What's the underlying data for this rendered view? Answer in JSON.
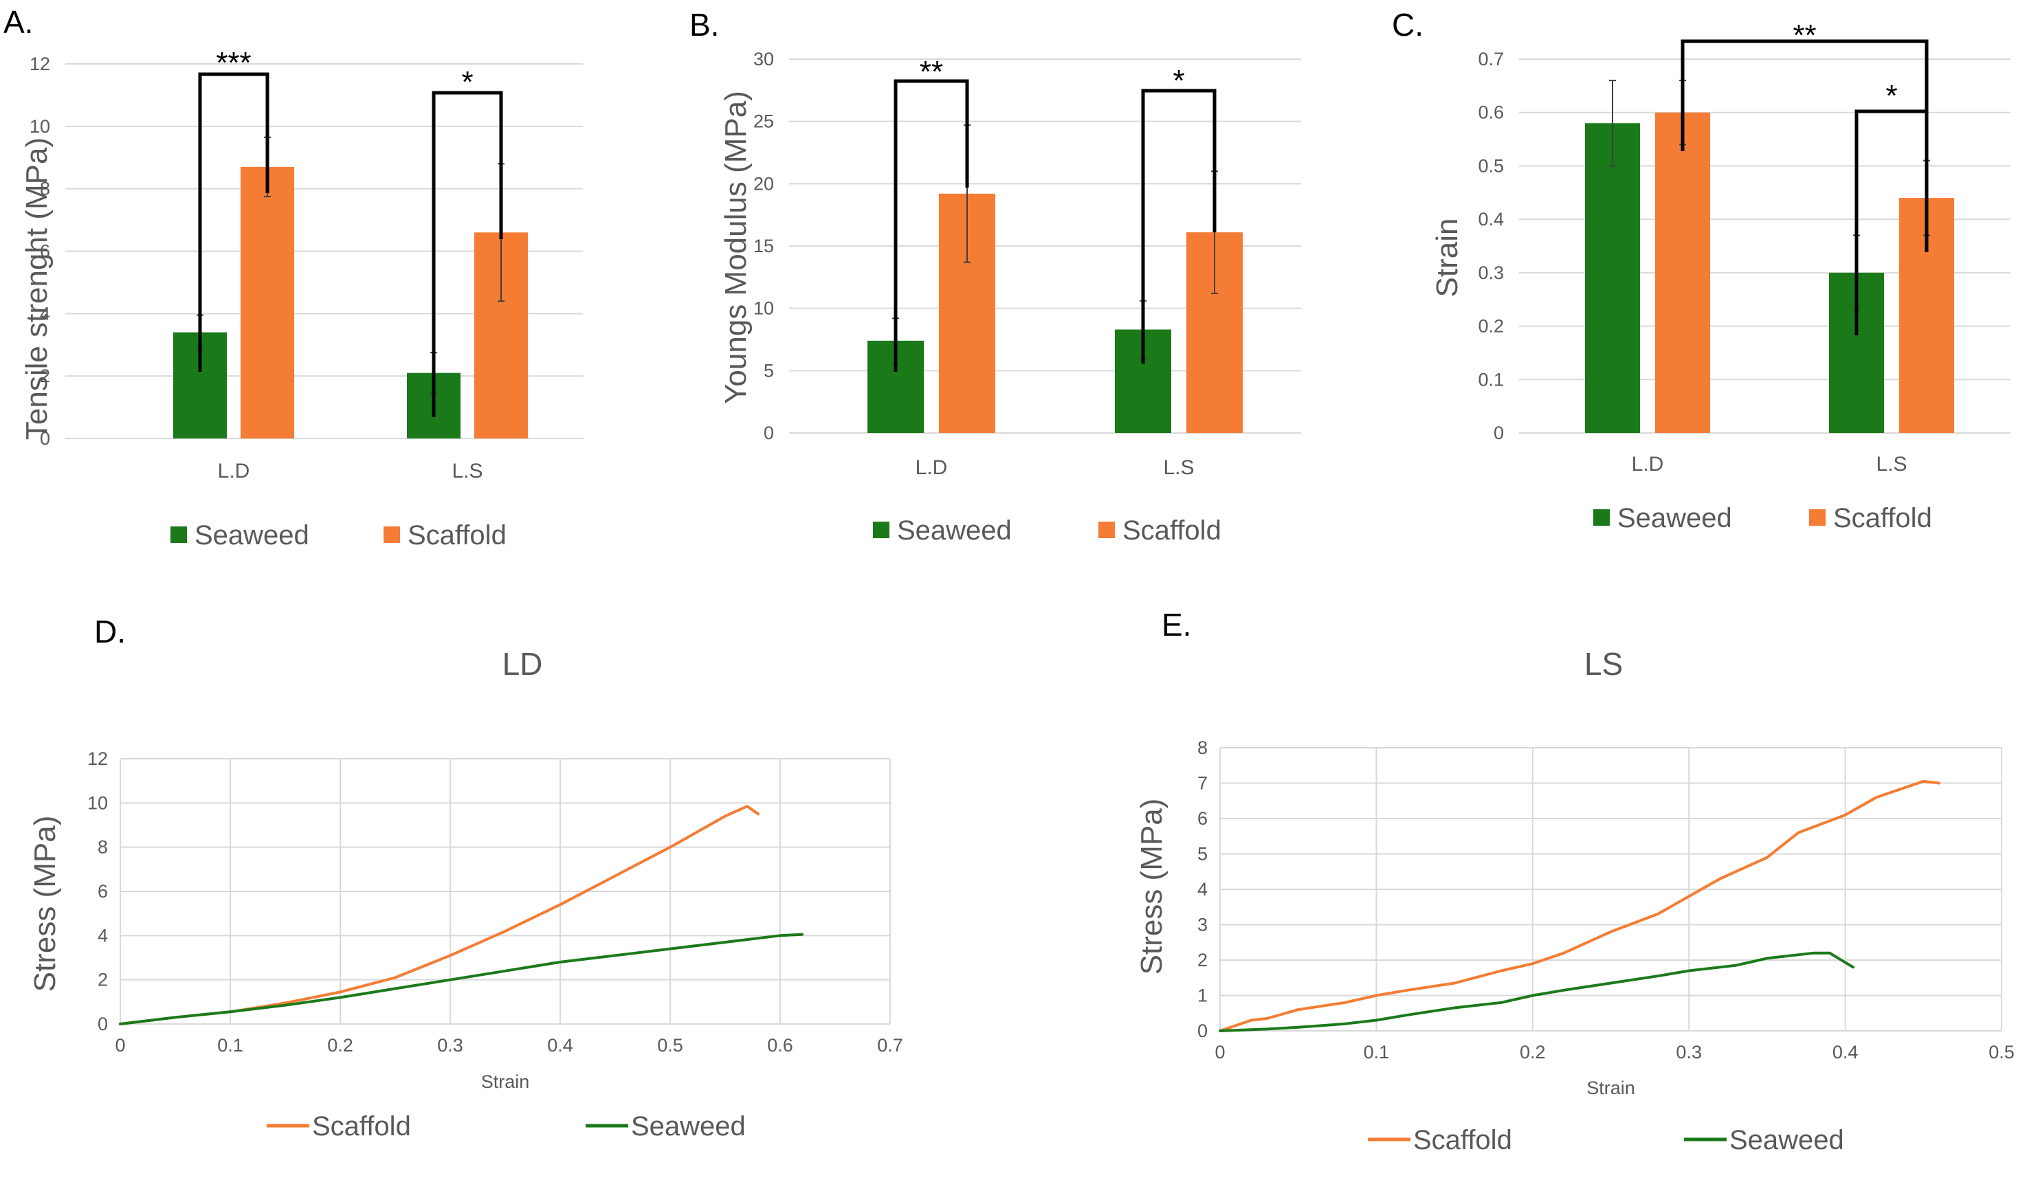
{
  "colors": {
    "seaweed": "#1a7a1a",
    "scaffold": "#f57c34",
    "grid": "#d9d9d9",
    "text": "#595959"
  },
  "chart_data": [
    {
      "panel": "A.",
      "type": "bar",
      "categories": [
        "L.D",
        "L.S"
      ],
      "series": [
        {
          "name": "Seaweed",
          "values": [
            3.4,
            2.1
          ],
          "errors": [
            0.55,
            0.65
          ]
        },
        {
          "name": "Scaffold",
          "values": [
            8.7,
            6.6
          ],
          "errors": [
            0.95,
            2.2
          ]
        }
      ],
      "ylabel": "Tensile strenght (MPa)",
      "ylim": [
        0,
        12
      ],
      "yticks": [
        "0",
        "2",
        "4",
        "6",
        "8",
        "10",
        "12"
      ],
      "significance": [
        "***",
        "*"
      ],
      "legend": [
        "Seaweed",
        "Scaffold"
      ]
    },
    {
      "panel": "B.",
      "type": "bar",
      "categories": [
        "L.D",
        "L.S"
      ],
      "series": [
        {
          "name": "Seaweed",
          "values": [
            7.4,
            8.3
          ],
          "errors": [
            1.8,
            2.3
          ]
        },
        {
          "name": "Scaffold",
          "values": [
            19.2,
            16.1
          ],
          "errors": [
            5.5,
            4.9
          ]
        }
      ],
      "ylabel": "Youngs Modulus (MPa)",
      "ylim": [
        0,
        30
      ],
      "yticks": [
        "0",
        "5",
        "10",
        "15",
        "20",
        "25",
        "30"
      ],
      "significance": [
        "**",
        "*"
      ],
      "legend": [
        "Seaweed",
        "Scaffold"
      ]
    },
    {
      "panel": "C.",
      "type": "bar",
      "categories": [
        "L.D",
        "L.S"
      ],
      "series": [
        {
          "name": "Seaweed",
          "values": [
            0.58,
            0.3
          ],
          "errors": [
            0.08,
            0.07
          ]
        },
        {
          "name": "Scaffold",
          "values": [
            0.6,
            0.44
          ],
          "errors": [
            0.06,
            0.07
          ]
        }
      ],
      "ylabel": "Strain",
      "ylim": [
        0,
        0.7
      ],
      "yticks": [
        "0",
        "0.1",
        "0.2",
        "0.3",
        "0.4",
        "0.5",
        "0.6",
        "0.7"
      ],
      "significance": [
        "**",
        "*"
      ],
      "legend": [
        "Seaweed",
        "Scaffold"
      ]
    },
    {
      "panel": "D.",
      "type": "line",
      "title": "LD",
      "xlabel": "Strain",
      "ylabel": "Stress (MPa)",
      "xlim": [
        0,
        0.7
      ],
      "ylim": [
        0,
        12
      ],
      "xticks": [
        "0",
        "0.1",
        "0.2",
        "0.3",
        "0.4",
        "0.5",
        "0.6",
        "0.7"
      ],
      "yticks": [
        "0",
        "2",
        "4",
        "6",
        "8",
        "10",
        "12"
      ],
      "series": [
        {
          "name": "Scaffold",
          "x": [
            0,
            0.05,
            0.1,
            0.15,
            0.2,
            0.25,
            0.3,
            0.35,
            0.4,
            0.45,
            0.5,
            0.55,
            0.57,
            0.58
          ],
          "y": [
            0,
            0.3,
            0.55,
            0.95,
            1.45,
            2.1,
            3.1,
            4.2,
            5.4,
            6.7,
            8.0,
            9.4,
            9.85,
            9.5
          ]
        },
        {
          "name": "Seaweed",
          "x": [
            0,
            0.05,
            0.1,
            0.15,
            0.2,
            0.25,
            0.3,
            0.35,
            0.4,
            0.45,
            0.5,
            0.55,
            0.6,
            0.62
          ],
          "y": [
            0,
            0.3,
            0.55,
            0.85,
            1.2,
            1.6,
            2.0,
            2.4,
            2.8,
            3.1,
            3.4,
            3.7,
            4.0,
            4.05
          ]
        }
      ],
      "legend": [
        "Scaffold",
        "Seaweed"
      ]
    },
    {
      "panel": "E.",
      "type": "line",
      "title": "LS",
      "xlabel": "Strain",
      "ylabel": "Stress (MPa)",
      "xlim": [
        0,
        0.5
      ],
      "ylim": [
        0,
        8
      ],
      "xticks": [
        "0",
        "0.1",
        "0.2",
        "0.3",
        "0.4",
        "0.5"
      ],
      "yticks": [
        "0",
        "1",
        "2",
        "3",
        "4",
        "5",
        "6",
        "7",
        "8"
      ],
      "series": [
        {
          "name": "Scaffold",
          "x": [
            0,
            0.02,
            0.03,
            0.05,
            0.08,
            0.1,
            0.12,
            0.15,
            0.18,
            0.2,
            0.22,
            0.25,
            0.28,
            0.3,
            0.32,
            0.35,
            0.37,
            0.4,
            0.42,
            0.45,
            0.46
          ],
          "y": [
            0,
            0.3,
            0.35,
            0.6,
            0.8,
            1.0,
            1.15,
            1.35,
            1.7,
            1.9,
            2.2,
            2.8,
            3.3,
            3.8,
            4.3,
            4.9,
            5.6,
            6.1,
            6.6,
            7.05,
            7.0
          ]
        },
        {
          "name": "Seaweed",
          "x": [
            0,
            0.03,
            0.05,
            0.08,
            0.1,
            0.12,
            0.15,
            0.18,
            0.2,
            0.22,
            0.25,
            0.28,
            0.3,
            0.33,
            0.35,
            0.38,
            0.39,
            0.405
          ],
          "y": [
            0,
            0.05,
            0.1,
            0.2,
            0.3,
            0.45,
            0.65,
            0.8,
            1.0,
            1.15,
            1.35,
            1.55,
            1.7,
            1.85,
            2.05,
            2.2,
            2.2,
            1.8
          ]
        }
      ],
      "legend": [
        "Scaffold",
        "Seaweed"
      ]
    }
  ]
}
